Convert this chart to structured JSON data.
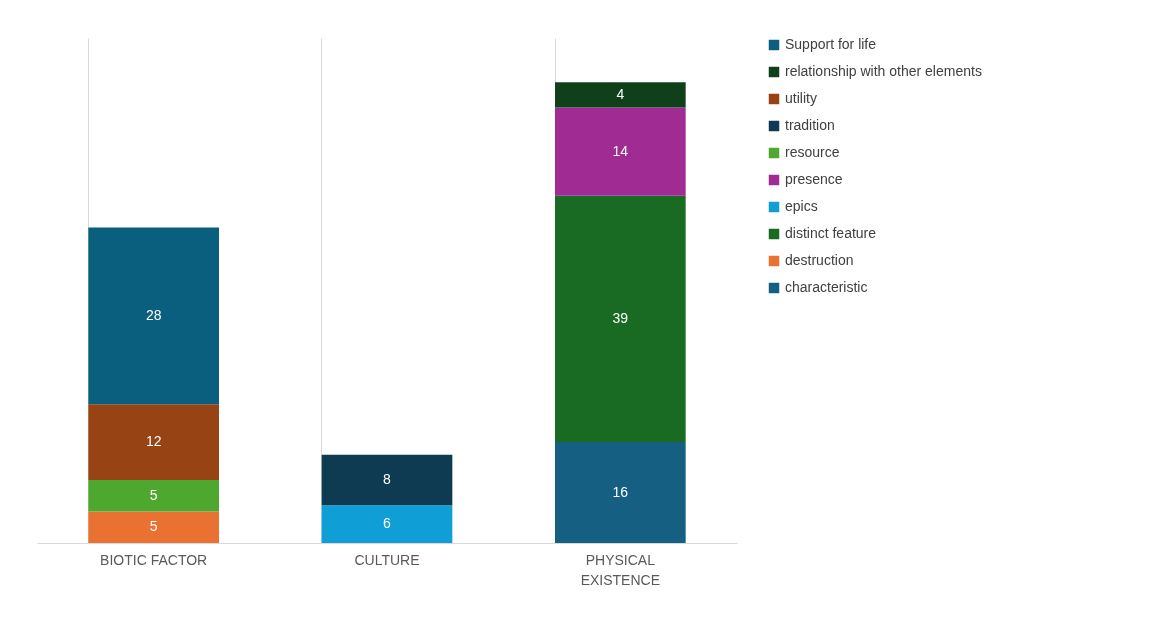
{
  "chart_data": {
    "type": "bar",
    "stacked": true,
    "data_labels": true,
    "grid": "x",
    "legend": "right",
    "categories": [
      "BIOTIC FACTOR",
      "CULTURE",
      "PHYSICAL EXISTENCE"
    ],
    "series": [
      {
        "name": "characteristic",
        "color": "#156082",
        "values": [
          null,
          null,
          16
        ]
      },
      {
        "name": "destruction",
        "color": "#e97132",
        "values": [
          5,
          null,
          null
        ]
      },
      {
        "name": "distinct feature",
        "color": "#196b24",
        "values": [
          null,
          null,
          39
        ]
      },
      {
        "name": "epics",
        "color": "#0f9ed5",
        "values": [
          null,
          6,
          null
        ]
      },
      {
        "name": "presence",
        "color": "#a02b93",
        "values": [
          null,
          null,
          14
        ]
      },
      {
        "name": "resource",
        "color": "#4ea72e",
        "values": [
          5,
          null,
          null
        ]
      },
      {
        "name": "tradition",
        "color": "#0e3a52",
        "values": [
          null,
          8,
          null
        ]
      },
      {
        "name": "utility",
        "color": "#984313",
        "values": [
          12,
          null,
          null
        ]
      },
      {
        "name": "relationship with other elements",
        "color": "#10401a",
        "values": [
          null,
          null,
          4
        ]
      },
      {
        "name": "Support for life",
        "color": "#0b5f7e",
        "values": [
          28,
          null,
          null
        ]
      }
    ]
  }
}
